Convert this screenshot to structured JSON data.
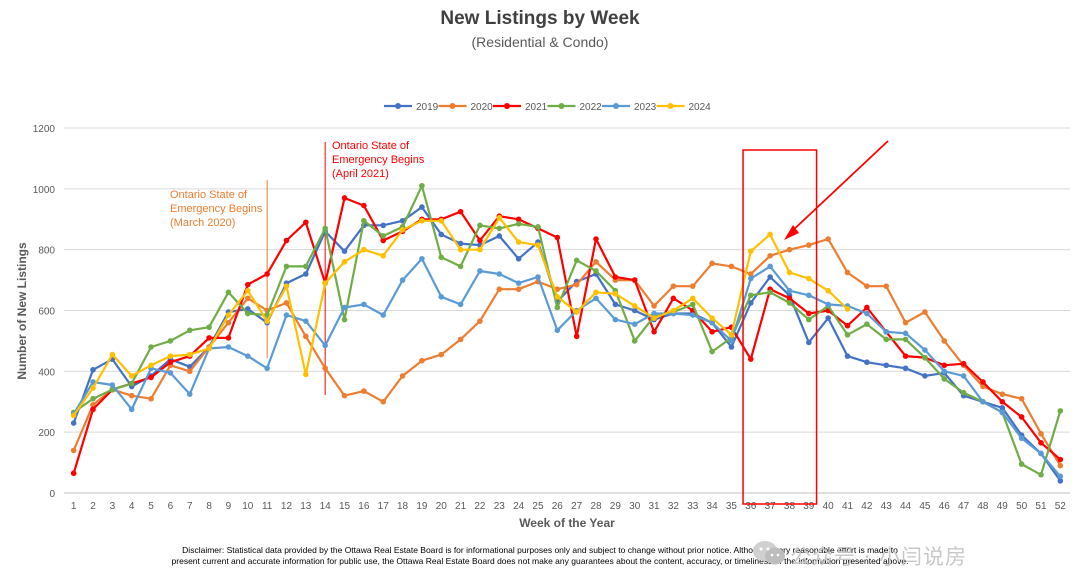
{
  "chart_data": {
    "type": "line",
    "title": "New Listings by Week",
    "subtitle": "(Residential & Condo)",
    "xlabel": "Week of the Year",
    "ylabel": "Number of New Listings",
    "ylim": [
      0,
      1200
    ],
    "yticks": [
      0,
      200,
      400,
      600,
      800,
      1000,
      1200
    ],
    "x": [
      1,
      2,
      3,
      4,
      5,
      6,
      7,
      8,
      9,
      10,
      11,
      12,
      13,
      14,
      15,
      16,
      17,
      18,
      19,
      20,
      21,
      22,
      23,
      24,
      25,
      26,
      27,
      28,
      29,
      30,
      31,
      32,
      33,
      34,
      35,
      36,
      37,
      38,
      39,
      40,
      41,
      42,
      43,
      44,
      45,
      46,
      47,
      48,
      49,
      50,
      51,
      52
    ],
    "series": [
      {
        "name": "2019",
        "color": "#4472c4",
        "values": [
          230,
          405,
          440,
          350,
          385,
          440,
          415,
          480,
          595,
          605,
          560,
          690,
          720,
          860,
          795,
          880,
          880,
          895,
          940,
          850,
          820,
          815,
          845,
          770,
          825,
          630,
          695,
          720,
          620,
          600,
          570,
          590,
          590,
          560,
          480,
          625,
          710,
          650,
          495,
          575,
          450,
          430,
          420,
          410,
          385,
          395,
          320,
          300,
          280,
          190,
          130,
          40
        ]
      },
      {
        "name": "2020",
        "color": "#ed7d31",
        "values": [
          140,
          290,
          340,
          320,
          310,
          420,
          400,
          480,
          560,
          640,
          600,
          625,
          515,
          410,
          320,
          335,
          300,
          385,
          435,
          455,
          505,
          565,
          670,
          670,
          695,
          670,
          685,
          760,
          700,
          700,
          615,
          680,
          680,
          755,
          745,
          720,
          780,
          800,
          815,
          835,
          725,
          680,
          680,
          560,
          595,
          500,
          420,
          350,
          325,
          310,
          195,
          90
        ]
      },
      {
        "name": "2021",
        "color": "#ff0000",
        "values": [
          65,
          275,
          340,
          360,
          380,
          430,
          450,
          510,
          510,
          685,
          720,
          830,
          890,
          690,
          970,
          945,
          830,
          860,
          900,
          900,
          925,
          830,
          910,
          900,
          870,
          840,
          515,
          835,
          710,
          700,
          530,
          640,
          600,
          530,
          545,
          440,
          670,
          640,
          590,
          600,
          550,
          610,
          530,
          450,
          445,
          420,
          425,
          365,
          300,
          250,
          165,
          110
        ]
      },
      {
        "name": "2022",
        "color": "#70ad47",
        "values": [
          265,
          310,
          340,
          360,
          480,
          500,
          535,
          545,
          660,
          590,
          585,
          745,
          745,
          870,
          570,
          895,
          845,
          875,
          1010,
          775,
          745,
          880,
          870,
          885,
          875,
          610,
          765,
          730,
          665,
          500,
          580,
          595,
          620,
          465,
          510,
          650,
          660,
          625,
          570,
          615,
          520,
          555,
          505,
          505,
          445,
          375,
          330,
          300,
          265,
          95,
          60,
          270
        ]
      },
      {
        "name": "2023",
        "color": "#5b9bd5",
        "values": [
          260,
          365,
          355,
          275,
          410,
          395,
          325,
          475,
          480,
          450,
          410,
          585,
          565,
          485,
          610,
          620,
          585,
          700,
          770,
          645,
          620,
          730,
          720,
          690,
          710,
          535,
          600,
          640,
          570,
          555,
          590,
          590,
          585,
          560,
          500,
          705,
          745,
          665,
          650,
          620,
          615,
          590,
          530,
          525,
          470,
          400,
          385,
          300,
          265,
          180,
          130,
          55
        ]
      },
      {
        "name": "2024",
        "color": "#ffc000",
        "values": [
          255,
          345,
          455,
          385,
          420,
          450,
          455,
          475,
          585,
          665,
          565,
          680,
          390,
          690,
          760,
          800,
          780,
          865,
          895,
          895,
          800,
          800,
          905,
          825,
          815,
          645,
          595,
          660,
          655,
          615,
          575,
          600,
          640,
          575,
          520,
          795,
          850,
          725,
          705,
          665,
          605,
          null,
          null,
          null,
          null,
          null,
          null,
          null,
          null,
          null,
          null,
          null
        ]
      }
    ],
    "annotations": [
      {
        "week": 11,
        "color": "#ed7d31",
        "lines": [
          "Ontario State of",
          "Emergency Begins",
          "(March 2020)"
        ]
      },
      {
        "week": 14,
        "color": "#ff0000",
        "lines": [
          "Ontario State of",
          "Emergency Begins",
          "(April 2021)"
        ]
      }
    ],
    "highlight": {
      "from_week": 36,
      "to_week": 39,
      "color": "#ff0000"
    }
  },
  "disclaimer": [
    "Disclaimer: Statistical data provided by the Ottawa Real Estate Board is for informational purposes only and subject to change without prior notice. Although every reasonable effort is made to",
    "present current and accurate information for public use, the Ottawa Real Estate Board does not make any guarantees about the content, accuracy, or timeliness of the information presented above."
  ],
  "watermark": "公众号 · 小闫说房"
}
